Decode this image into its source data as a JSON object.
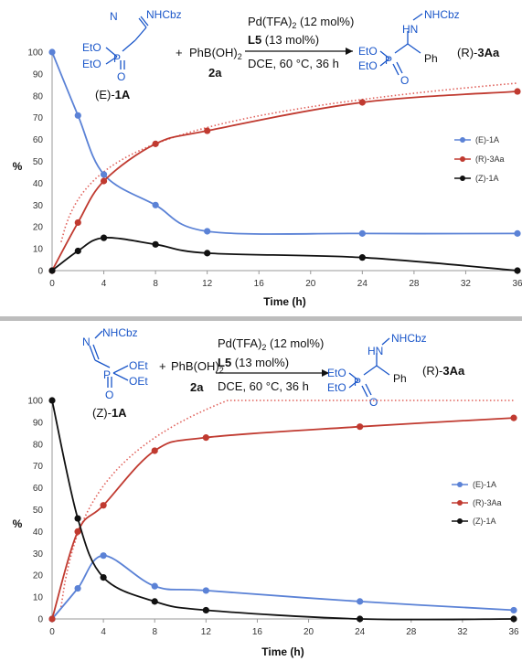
{
  "colors": {
    "E": "#5b82d6",
    "R": "#c03a30",
    "Z": "#111111",
    "fit": "#e0605a",
    "molecule": "#1a56c9",
    "separator": "#bdbdbd"
  },
  "schemes": [
    {
      "reagent": "PhB(OH)",
      "reagent_sub": "2",
      "reagent_id": "2a",
      "plus": "+",
      "cond_catalyst": "Pd(TFA)",
      "cond_catalyst_sub": "2",
      "cond_catalyst_tail": " (12 mol%)",
      "cond_ligand": "L5",
      "cond_ligand_tail": " (13 mol%)",
      "cond_rest": "DCE, 60 °C, 36 h",
      "sm_prefix": "(E)-",
      "sm_id": "1A",
      "prod_prefix": "(R)-",
      "prod_id": "3Aa",
      "sm_atoms": {
        "nh": "NHCbz",
        "n": "N",
        "eto1": "EtO",
        "eto2": "EtO",
        "p": "P",
        "o": "O"
      },
      "prod_atoms": {
        "hn": "HN",
        "nh": "NHCbz",
        "eto1": "EtO",
        "eto2": "EtO",
        "p": "P",
        "o": "O",
        "ph": "Ph"
      }
    },
    {
      "reagent": "PhB(OH)",
      "reagent_sub": "2",
      "reagent_id": "2a",
      "plus": "+",
      "cond_catalyst": "Pd(TFA)",
      "cond_catalyst_sub": "2",
      "cond_catalyst_tail": " (12 mol%)",
      "cond_ligand": "L5",
      "cond_ligand_tail": " (13 mol%)",
      "cond_rest": "DCE, 60 °C, 36 h",
      "sm_prefix": "(Z)-",
      "sm_id": "1A",
      "prod_prefix": "(R)-",
      "prod_id": "3Aa",
      "sm_atoms": {
        "nh": "NHCbz",
        "n": "N",
        "oet1": "OEt",
        "oet2": "OEt",
        "p": "P",
        "o": "O"
      },
      "prod_atoms": {
        "hn": "HN",
        "nh": "NHCbz",
        "eto1": "EtO",
        "eto2": "EtO",
        "p": "P",
        "o": "O",
        "ph": "Ph"
      }
    }
  ],
  "chart_data": [
    {
      "type": "line",
      "xlabel": "Time (h)",
      "ylabel": "%",
      "xlim": [
        0,
        36
      ],
      "ylim": [
        0,
        100
      ],
      "xticks": [
        0,
        4,
        8,
        12,
        16,
        20,
        24,
        28,
        32,
        36
      ],
      "yticks": [
        0,
        10,
        20,
        30,
        40,
        50,
        60,
        70,
        80,
        90,
        100
      ],
      "grid": false,
      "legend": "right",
      "series": [
        {
          "name": "(E)-1A",
          "x": [
            0,
            2,
            4,
            8,
            12,
            24,
            36
          ],
          "y": [
            100,
            71,
            44,
            30,
            18,
            17,
            17
          ]
        },
        {
          "name": "(R)-3Aa",
          "x": [
            0,
            2,
            4,
            8,
            12,
            24,
            36
          ],
          "y": [
            0,
            22,
            41,
            58,
            64,
            77,
            82
          ]
        },
        {
          "name": "(Z)-1A",
          "x": [
            0,
            2,
            4,
            8,
            12,
            24,
            36
          ],
          "y": [
            0,
            9,
            15,
            12,
            8,
            6,
            0
          ]
        }
      ],
      "trendline": {
        "series": "(R)-3Aa",
        "style": "dotted",
        "type": "logarithmic",
        "a": 18.46,
        "b": 19.65
      }
    },
    {
      "type": "line",
      "xlabel": "Time (h)",
      "ylabel": "%",
      "xlim": [
        0,
        36
      ],
      "ylim": [
        0,
        100
      ],
      "xticks": [
        0,
        4,
        8,
        12,
        16,
        20,
        24,
        28,
        32,
        36
      ],
      "yticks": [
        0,
        10,
        20,
        30,
        40,
        50,
        60,
        70,
        80,
        90,
        100
      ],
      "grid": false,
      "legend": "right",
      "series": [
        {
          "name": "(E)-1A",
          "x": [
            0,
            2,
            4,
            8,
            12,
            24,
            36
          ],
          "y": [
            0,
            14,
            29,
            15,
            13,
            8,
            4
          ]
        },
        {
          "name": "(R)-3Aa",
          "x": [
            0,
            2,
            4,
            8,
            12,
            24,
            36
          ],
          "y": [
            0,
            40,
            52,
            77,
            83,
            88,
            92
          ]
        },
        {
          "name": "(Z)-1A",
          "x": [
            0,
            2,
            4,
            8,
            12,
            24,
            36
          ],
          "y": [
            100,
            46,
            19,
            8,
            4,
            0,
            0
          ]
        }
      ],
      "trendline": {
        "series": "(R)-3Aa",
        "style": "dotted",
        "type": "logarithmic",
        "a": 31.8,
        "b": 16.8
      }
    }
  ]
}
